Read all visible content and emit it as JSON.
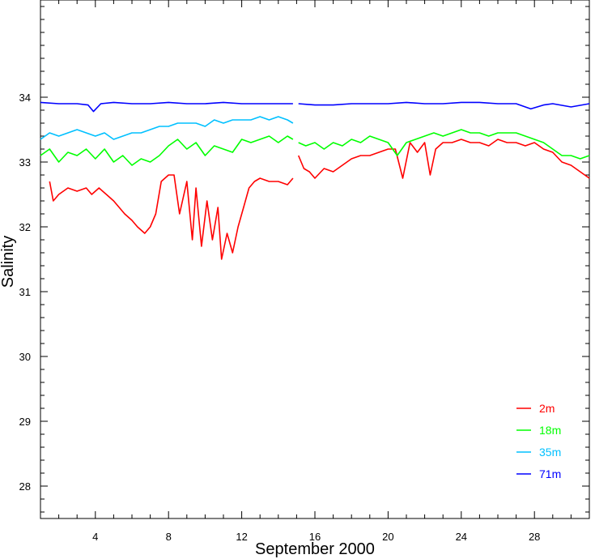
{
  "chart_data": {
    "type": "line",
    "title": "",
    "xlabel": "September 2000",
    "ylabel": "Salinity",
    "xlim": [
      1,
      31
    ],
    "ylim": [
      27.5,
      35.5
    ],
    "x_ticks": [
      4,
      8,
      12,
      16,
      20,
      24,
      28
    ],
    "y_ticks": [
      28,
      29,
      30,
      31,
      32,
      33,
      34
    ],
    "grid": false,
    "legend_position": "bottom-right",
    "gap": [
      14.8,
      15.1
    ],
    "series": [
      {
        "name": "2m",
        "color": "#ff0000",
        "x": [
          1.5,
          1.7,
          2.0,
          2.5,
          3.0,
          3.5,
          3.8,
          4.2,
          4.6,
          5.0,
          5.3,
          5.6,
          6.0,
          6.3,
          6.7,
          7.0,
          7.3,
          7.6,
          8.0,
          8.3,
          8.6,
          9.0,
          9.3,
          9.5,
          9.8,
          10.1,
          10.4,
          10.7,
          10.9,
          11.2,
          11.5,
          11.8,
          12.1,
          12.4,
          12.7,
          13.0,
          13.5,
          14.0,
          14.5,
          14.8,
          15.1,
          15.4,
          15.7,
          16.0,
          16.5,
          17.0,
          17.5,
          18.0,
          18.5,
          19.0,
          19.5,
          20.0,
          20.4,
          20.8,
          21.2,
          21.6,
          22.0,
          22.3,
          22.6,
          23.0,
          23.5,
          24.0,
          24.5,
          25.0,
          25.5,
          26.0,
          26.5,
          27.0,
          27.5,
          28.0,
          28.5,
          29.0,
          29.5,
          30.0,
          30.5,
          31.0
        ],
        "values": [
          32.7,
          32.4,
          32.5,
          32.6,
          32.55,
          32.6,
          32.5,
          32.6,
          32.5,
          32.4,
          32.3,
          32.2,
          32.1,
          32.0,
          31.9,
          32.0,
          32.2,
          32.7,
          32.8,
          32.8,
          32.2,
          32.7,
          31.8,
          32.6,
          31.7,
          32.4,
          31.8,
          32.3,
          31.5,
          31.9,
          31.6,
          32.0,
          32.3,
          32.6,
          32.7,
          32.75,
          32.7,
          32.7,
          32.65,
          32.75,
          33.1,
          32.9,
          32.85,
          32.75,
          32.9,
          32.85,
          32.95,
          33.05,
          33.1,
          33.1,
          33.15,
          33.2,
          33.2,
          32.75,
          33.3,
          33.15,
          33.3,
          32.8,
          33.2,
          33.3,
          33.3,
          33.35,
          33.3,
          33.3,
          33.25,
          33.35,
          33.3,
          33.3,
          33.25,
          33.3,
          33.2,
          33.15,
          33.0,
          32.95,
          32.85,
          32.75
        ]
      },
      {
        "name": "18m",
        "color": "#00ff00",
        "x": [
          1.0,
          1.5,
          2.0,
          2.5,
          3.0,
          3.5,
          4.0,
          4.5,
          5.0,
          5.5,
          6.0,
          6.5,
          7.0,
          7.5,
          8.0,
          8.5,
          9.0,
          9.5,
          10.0,
          10.5,
          11.0,
          11.5,
          12.0,
          12.5,
          13.0,
          13.5,
          14.0,
          14.5,
          14.8,
          15.1,
          15.5,
          16.0,
          16.5,
          17.0,
          17.5,
          18.0,
          18.5,
          19.0,
          19.5,
          20.0,
          20.5,
          21.0,
          21.5,
          22.0,
          22.5,
          23.0,
          23.5,
          24.0,
          24.5,
          25.0,
          25.5,
          26.0,
          26.5,
          27.0,
          27.5,
          28.0,
          28.5,
          29.0,
          29.5,
          30.0,
          30.5,
          31.0
        ],
        "values": [
          33.1,
          33.2,
          33.0,
          33.15,
          33.1,
          33.2,
          33.05,
          33.2,
          33.0,
          33.1,
          32.95,
          33.05,
          33.0,
          33.1,
          33.25,
          33.35,
          33.2,
          33.3,
          33.1,
          33.25,
          33.2,
          33.15,
          33.35,
          33.3,
          33.35,
          33.4,
          33.3,
          33.4,
          33.35,
          33.3,
          33.25,
          33.3,
          33.2,
          33.3,
          33.25,
          33.35,
          33.3,
          33.4,
          33.35,
          33.3,
          33.1,
          33.3,
          33.35,
          33.4,
          33.45,
          33.4,
          33.45,
          33.5,
          33.45,
          33.45,
          33.4,
          33.45,
          33.45,
          33.45,
          33.4,
          33.35,
          33.3,
          33.2,
          33.1,
          33.1,
          33.05,
          33.1
        ]
      },
      {
        "name": "35m",
        "color": "#00c0ff",
        "x": [
          1.0,
          1.5,
          2.0,
          2.5,
          3.0,
          3.5,
          4.0,
          4.5,
          5.0,
          5.5,
          6.0,
          6.5,
          7.0,
          7.5,
          8.0,
          8.5,
          9.0,
          9.5,
          10.0,
          10.5,
          11.0,
          11.5,
          12.0,
          12.5,
          13.0,
          13.5,
          14.0,
          14.5,
          14.8
        ],
        "values": [
          33.35,
          33.45,
          33.4,
          33.45,
          33.5,
          33.45,
          33.4,
          33.45,
          33.35,
          33.4,
          33.45,
          33.45,
          33.5,
          33.55,
          33.55,
          33.6,
          33.6,
          33.6,
          33.55,
          33.65,
          33.6,
          33.65,
          33.65,
          33.65,
          33.7,
          33.65,
          33.7,
          33.65,
          33.6
        ]
      },
      {
        "name": "71m",
        "color": "#0000ff",
        "x": [
          1.0,
          2.0,
          3.0,
          3.6,
          3.9,
          4.3,
          5.0,
          6.0,
          7.0,
          8.0,
          9.0,
          10.0,
          11.0,
          12.0,
          13.0,
          14.0,
          14.8,
          15.1,
          16.0,
          17.0,
          18.0,
          19.0,
          20.0,
          21.0,
          22.0,
          23.0,
          24.0,
          25.0,
          26.0,
          27.0,
          27.8,
          28.5,
          29.0,
          30.0,
          31.0
        ],
        "values": [
          33.92,
          33.9,
          33.9,
          33.88,
          33.78,
          33.9,
          33.92,
          33.9,
          33.9,
          33.92,
          33.9,
          33.9,
          33.92,
          33.9,
          33.9,
          33.9,
          33.9,
          33.9,
          33.88,
          33.88,
          33.9,
          33.9,
          33.9,
          33.92,
          33.9,
          33.9,
          33.92,
          33.92,
          33.9,
          33.9,
          33.82,
          33.88,
          33.9,
          33.85,
          33.9
        ]
      }
    ]
  }
}
